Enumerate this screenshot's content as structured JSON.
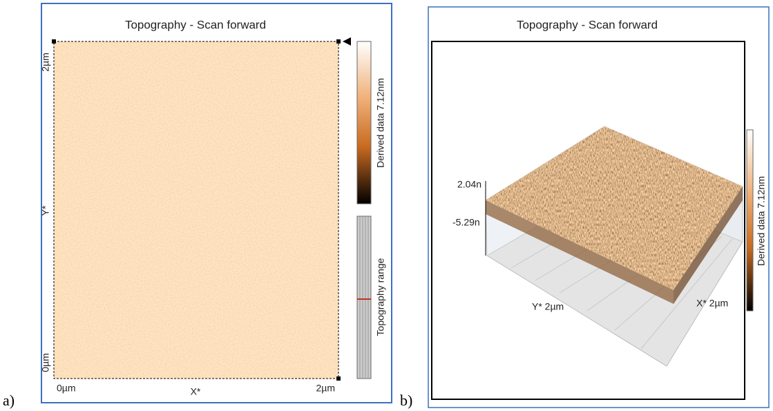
{
  "panel_a": {
    "label": "a)",
    "title": "Topography - Scan forward",
    "y_axis": {
      "top": "2µm",
      "name": "Y*",
      "bottom": "0µm"
    },
    "x_axis": {
      "left": "0µm",
      "name": "X*",
      "right": "2µm"
    },
    "colorbar_label": "Derived data 7.12nm",
    "range_label": "Topography range"
  },
  "panel_b": {
    "label": "b)",
    "title": "Topography - Scan forward",
    "z_top": "2.04n",
    "z_bottom": "-5.29n",
    "y_label": "Y* 2µm",
    "x_label": "X* 2µm",
    "colorbar_label": "Derived data 7.12nm"
  }
}
